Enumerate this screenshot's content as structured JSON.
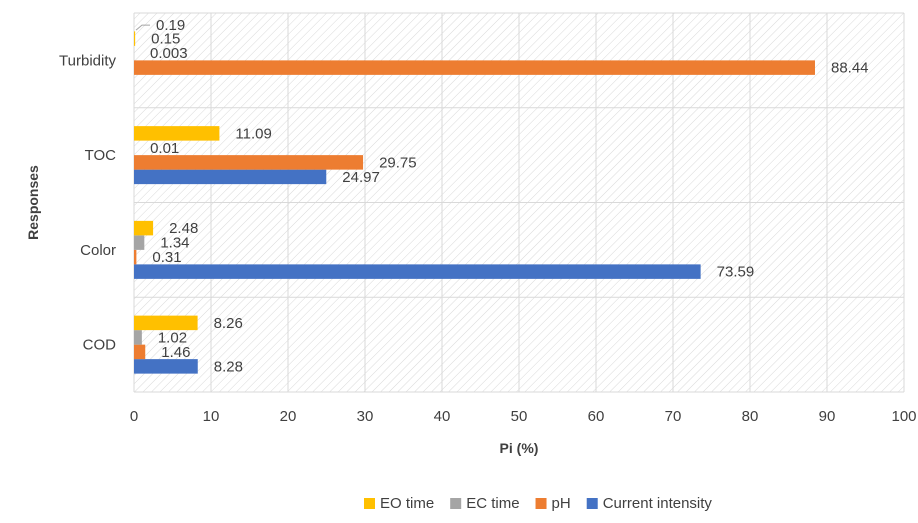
{
  "chart_data": {
    "type": "bar",
    "orientation": "horizontal",
    "categories": [
      "COD",
      "Color",
      "TOC",
      "Turbidity"
    ],
    "series": [
      {
        "name": "Current intensity",
        "color": "#4472C4",
        "values": [
          8.28,
          73.59,
          24.97,
          null
        ],
        "labels": [
          "8.28",
          "73.59",
          "24.97",
          ""
        ]
      },
      {
        "name": "pH",
        "color": "#ED7D31",
        "values": [
          1.46,
          0.31,
          29.75,
          88.44
        ],
        "labels": [
          "1.46",
          "0.31",
          "29.75",
          "88.44"
        ]
      },
      {
        "name": "EC time",
        "color": "#A5A5A5",
        "values": [
          1.02,
          1.34,
          0.01,
          0.003
        ],
        "labels": [
          "1.02",
          "1.34",
          "0.01",
          "0.003"
        ]
      },
      {
        "name": "EO time",
        "color": "#FFC000",
        "values": [
          8.26,
          2.48,
          11.09,
          0.15
        ],
        "labels": [
          "8.26",
          "2.48",
          "11.09",
          "0.15"
        ]
      }
    ],
    "extra_labels": [
      {
        "category": "Turbidity",
        "text": "0.19"
      }
    ],
    "xlabel": "Pi (%)",
    "ylabel": "Responses",
    "xlim": [
      0,
      100
    ],
    "xticks": [
      "0",
      "10",
      "20",
      "30",
      "40",
      "50",
      "60",
      "70",
      "80",
      "90",
      "100"
    ],
    "grid": true,
    "legend_position": "bottom",
    "legend_order": [
      "EO time",
      "EC time",
      "pH",
      "Current intensity"
    ]
  }
}
